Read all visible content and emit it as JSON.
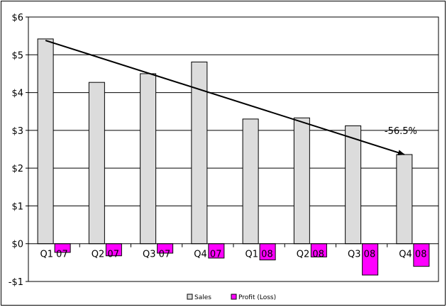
{
  "chart_data": {
    "type": "bar",
    "title": "",
    "xlabel": "",
    "ylabel": "",
    "categories": [
      "Q1 07",
      "Q2 07",
      "Q3 07",
      "Q4 07",
      "Q1 08",
      "Q2 08",
      "Q3 08",
      "Q4 08"
    ],
    "series": [
      {
        "name": "Sales",
        "color": "#dcdcdc",
        "values": [
          5.42,
          4.27,
          4.5,
          4.81,
          3.3,
          3.33,
          3.12,
          2.36
        ]
      },
      {
        "name": "Profit (Loss)",
        "color": "#ff00ff",
        "values": [
          -0.23,
          -0.32,
          -0.25,
          -0.38,
          -0.43,
          -0.35,
          -0.83,
          -0.6
        ]
      }
    ],
    "ylim": [
      -1,
      6
    ],
    "yticks": [
      6,
      5,
      4,
      3,
      2,
      1,
      0,
      -1
    ],
    "ytick_labels": [
      "$6",
      "$5",
      "$4",
      "$3",
      "$2",
      "$1",
      "$0",
      "-$1"
    ],
    "grid": true,
    "legend_position": "bottom",
    "annotation": {
      "text": "-56.5%",
      "arrow_from": {
        "category": "Q1 07",
        "value": 5.38
      },
      "arrow_to": {
        "category": "Q4 08",
        "value": 2.36
      }
    }
  }
}
